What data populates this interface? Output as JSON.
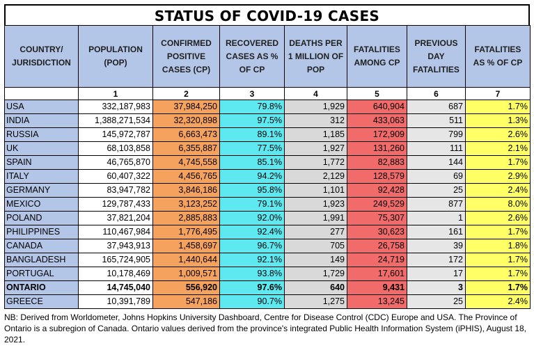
{
  "title": "STATUS OF COVID-19 CASES",
  "columns": [
    "COUNTRY/ JURISDICTION",
    "POPULATION (POP)",
    "CONFIRMED POSITIVE CASES (CP)",
    "RECOVERED CASES AS % OF CP",
    "DEATHS PER 1 MILLION OF POP",
    "FATALITIES AMONG CP",
    "PREVIOUS DAY FATALITIES",
    "FATALITIES AS % OF CP"
  ],
  "column_numbers": [
    "",
    "1",
    "2",
    "3",
    "4",
    "5",
    "6",
    "7"
  ],
  "rows": [
    {
      "country": "USA",
      "population": "332,187,983",
      "confirmed": "37,984,250",
      "recovered_pct": "79.8%",
      "deaths_per_million": "1,929",
      "fatalities": "640,904",
      "previous_day": "687",
      "fatality_pct": "1.7%",
      "bold": false
    },
    {
      "country": "INDIA",
      "population": "1,388,271,534",
      "confirmed": "32,320,898",
      "recovered_pct": "97.5%",
      "deaths_per_million": "312",
      "fatalities": "433,063",
      "previous_day": "511",
      "fatality_pct": "1.3%",
      "bold": false
    },
    {
      "country": "RUSSIA",
      "population": "145,972,787",
      "confirmed": "6,663,473",
      "recovered_pct": "89.1%",
      "deaths_per_million": "1,185",
      "fatalities": "172,909",
      "previous_day": "799",
      "fatality_pct": "2.6%",
      "bold": false
    },
    {
      "country": "UK",
      "population": "68,103,858",
      "confirmed": "6,355,887",
      "recovered_pct": "77.5%",
      "deaths_per_million": "1,927",
      "fatalities": "131,260",
      "previous_day": "111",
      "fatality_pct": "2.1%",
      "bold": false
    },
    {
      "country": "SPAIN",
      "population": "46,765,870",
      "confirmed": "4,745,558",
      "recovered_pct": "85.1%",
      "deaths_per_million": "1,772",
      "fatalities": "82,883",
      "previous_day": "144",
      "fatality_pct": "1.7%",
      "bold": false
    },
    {
      "country": "ITALY",
      "population": "60,407,322",
      "confirmed": "4,456,765",
      "recovered_pct": "94.2%",
      "deaths_per_million": "2,129",
      "fatalities": "128,579",
      "previous_day": "69",
      "fatality_pct": "2.9%",
      "bold": false
    },
    {
      "country": "GERMANY",
      "population": "83,947,782",
      "confirmed": "3,846,186",
      "recovered_pct": "95.8%",
      "deaths_per_million": "1,101",
      "fatalities": "92,428",
      "previous_day": "25",
      "fatality_pct": "2.4%",
      "bold": false
    },
    {
      "country": "MEXICO",
      "population": "129,787,433",
      "confirmed": "3,123,252",
      "recovered_pct": "79.1%",
      "deaths_per_million": "1,923",
      "fatalities": "249,529",
      "previous_day": "877",
      "fatality_pct": "8.0%",
      "bold": false
    },
    {
      "country": "POLAND",
      "population": "37,821,204",
      "confirmed": "2,885,883",
      "recovered_pct": "92.0%",
      "deaths_per_million": "1,991",
      "fatalities": "75,307",
      "previous_day": "1",
      "fatality_pct": "2.6%",
      "bold": false
    },
    {
      "country": "PHILIPPINES",
      "population": "110,467,984",
      "confirmed": "1,776,495",
      "recovered_pct": "92.4%",
      "deaths_per_million": "277",
      "fatalities": "30,623",
      "previous_day": "161",
      "fatality_pct": "1.7%",
      "bold": false
    },
    {
      "country": "CANADA",
      "population": "37,943,913",
      "confirmed": "1,458,697",
      "recovered_pct": "96.7%",
      "deaths_per_million": "705",
      "fatalities": "26,758",
      "previous_day": "39",
      "fatality_pct": "1.8%",
      "bold": false
    },
    {
      "country": "BANGLADESH",
      "population": "165,724,905",
      "confirmed": "1,440,644",
      "recovered_pct": "92.1%",
      "deaths_per_million": "149",
      "fatalities": "24,719",
      "previous_day": "172",
      "fatality_pct": "1.7%",
      "bold": false
    },
    {
      "country": "PORTUGAL",
      "population": "10,178,469",
      "confirmed": "1,009,571",
      "recovered_pct": "93.8%",
      "deaths_per_million": "1,729",
      "fatalities": "17,601",
      "previous_day": "17",
      "fatality_pct": "1.7%",
      "bold": false
    },
    {
      "country": "ONTARIO",
      "population": "14,745,040",
      "confirmed": "556,920",
      "recovered_pct": "97.6%",
      "deaths_per_million": "640",
      "fatalities": "9,431",
      "previous_day": "3",
      "fatality_pct": "1.7%",
      "bold": true
    },
    {
      "country": "GREECE",
      "population": "10,391,789",
      "confirmed": "547,186",
      "recovered_pct": "90.7%",
      "deaths_per_million": "1,275",
      "fatalities": "13,245",
      "previous_day": "25",
      "fatality_pct": "2.4%",
      "bold": false
    }
  ],
  "note": "NB: Derived from Worldometer, Johns Hopkins University Dashboard, Centre for Disease Control (CDC) Europe and USA. The Province of Ontario is a subregion of Canada. Ontario values derived from the province's integrated Public Health Information System (iPHIS), August 18, 2021.",
  "colors": {
    "header": "#b4c6e7",
    "country": "#b4c6e7",
    "confirmed": "#f4a25e",
    "recovered": "#5ee8f0",
    "deaths_per_million": "#d9d9d9",
    "fatalities": "#f26b6b",
    "previous_day": "#e7e6e6",
    "fatality_pct": "#ffff66"
  }
}
